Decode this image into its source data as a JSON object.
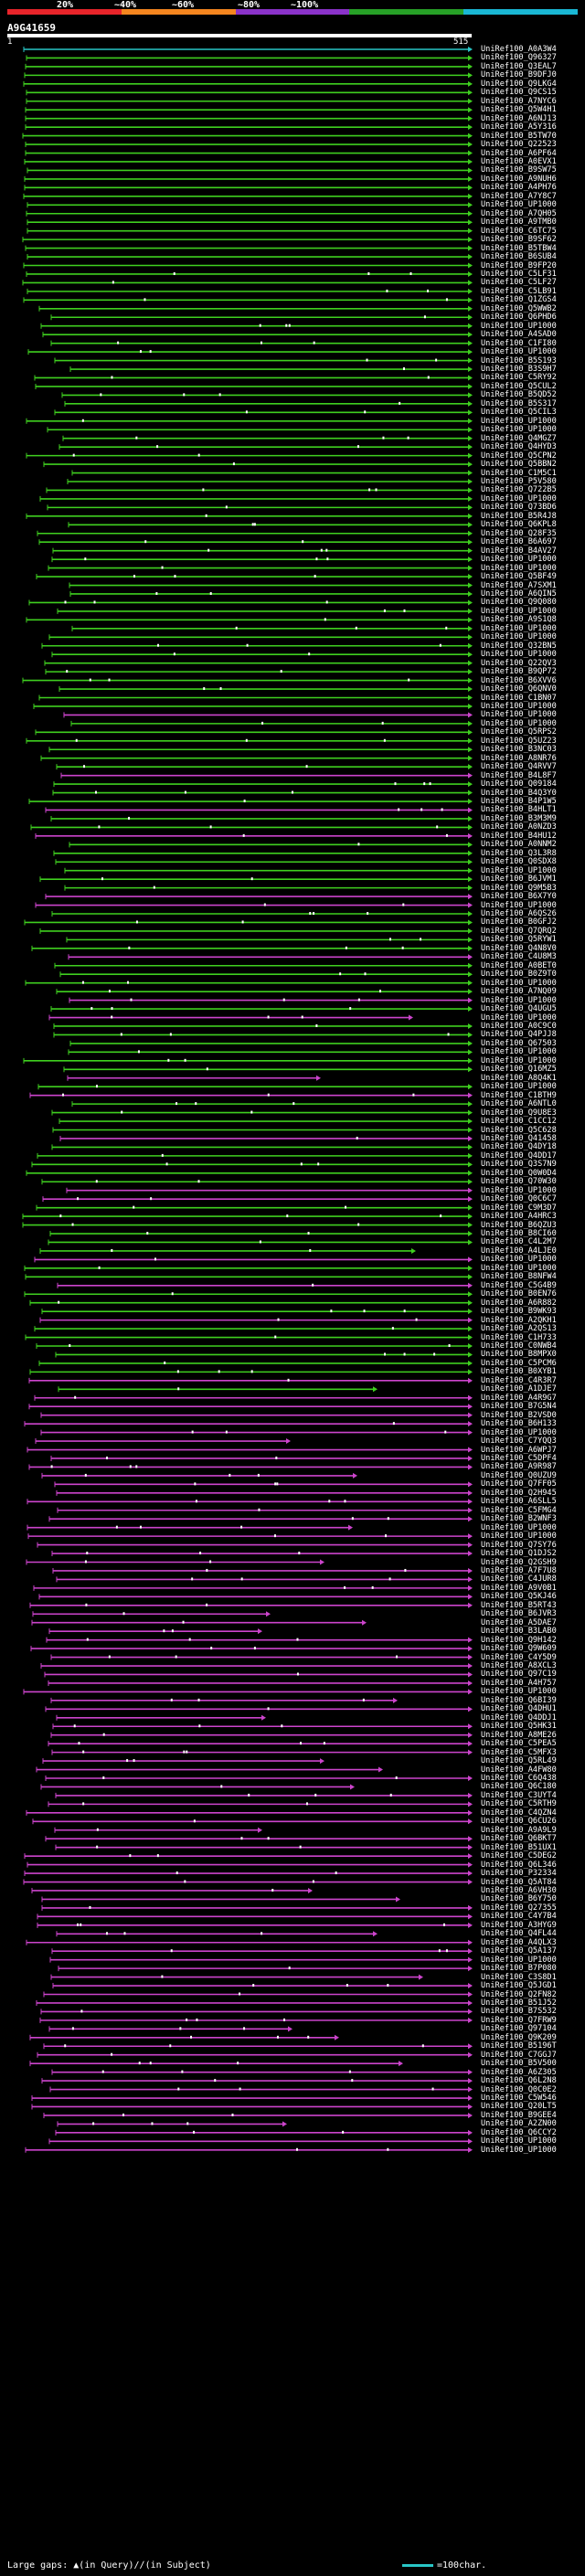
{
  "scale": {
    "colors": [
      "#e8242a",
      "#f5861f",
      "#8a32c9",
      "#27a127",
      "#1ab7d4"
    ],
    "ticks": [
      "20%",
      "~40%",
      "~60%",
      "~80%",
      "~100%"
    ]
  },
  "query": {
    "id": "A9G41659",
    "start": "1",
    "end": "515"
  },
  "track_colors": {
    "green": "#3fcf1f",
    "magenta": "#cc44cc",
    "cyan": "#29c6c6"
  },
  "hits": [
    "UniRef100_A0A3W4",
    "UniRef100_Q96327",
    "UniRef100_Q3EAL7",
    "UniRef100_B9DFJ0",
    "UniRef100_Q9LKG4",
    "UniRef100_Q9CS15",
    "UniRef100_A7NYC6",
    "UniRef100_Q5W4H1",
    "UniRef100_A6NJ13",
    "UniRef100_A5Y316",
    "UniRef100_B5TW70",
    "UniRef100_Q22523",
    "UniRef100_A6PF64",
    "UniRef100_A0EVX1",
    "UniRef100_B9SW75",
    "UniRef100_A9NUH6",
    "UniRef100_A4PH76",
    "UniRef100_A7Y8C7",
    "UniRef100_UP1000",
    "UniRef100_A7QH05",
    "UniRef100_A9TMB0",
    "UniRef100_C6TC75",
    "UniRef100_B9SF62",
    "UniRef100_B5TBW4",
    "UniRef100_B6SUB4",
    "UniRef100_B9FP20",
    "UniRef100_C5LF31",
    "UniRef100_C5LF27",
    "UniRef100_C5LB91",
    "UniRef100_Q1ZGS4",
    "UniRef100_Q5WWB2",
    "UniRef100_Q6PHD6",
    "UniRef100_UP1000",
    "UniRef100_A4SAD0",
    "UniRef100_C1FI80",
    "UniRef100_UP1000",
    "UniRef100_B5S193",
    "UniRef100_B3S9H7",
    "UniRef100_C5RY92",
    "UniRef100_Q5CUL2",
    "UniRef100_B5QD52",
    "UniRef100_B5S317",
    "UniRef100_Q5CIL3",
    "UniRef100_UP1000",
    "UniRef100_UP1000",
    "UniRef100_Q4MGZ7",
    "UniRef100_Q4HYD3",
    "UniRef100_Q5CPN2",
    "UniRef100_Q5BBN2",
    "UniRef100_C1M5C1",
    "UniRef100_P5V580",
    "UniRef100_Q722B5",
    "UniRef100_UP1000",
    "UniRef100_Q73BD6",
    "UniRef100_B5R4J8",
    "UniRef100_Q6KPL8",
    "UniRef100_Q28F35",
    "UniRef100_B6A697",
    "UniRef100_B4AV27",
    "UniRef100_UP1000",
    "UniRef100_UP1000",
    "UniRef100_Q5BF49",
    "UniRef100_A7SXM1",
    "UniRef100_A6QIN5",
    "UniRef100_Q9Q080",
    "UniRef100_UP1000",
    "UniRef100_A9S1Q8",
    "UniRef100_UP1000",
    "UniRef100_UP1000",
    "UniRef100_Q32BN5",
    "UniRef100_UP1000",
    "UniRef100_Q22QV3",
    "UniRef100_B9QP72",
    "UniRef100_B6XVV6",
    "UniRef100_Q6QNV0",
    "UniRef100_C1BN07",
    "UniRef100_UP1000",
    "UniRef100_UP1000",
    "UniRef100_UP1000",
    "UniRef100_Q5RPS2",
    "UniRef100_Q5UZ23",
    "UniRef100_B3NC03",
    "UniRef100_A8NR76",
    "UniRef100_Q4RVV7",
    "UniRef100_B4L8F7",
    "UniRef100_Q09184",
    "UniRef100_B4Q3Y0",
    "UniRef100_B4P1W5",
    "UniRef100_B4HLT1",
    "UniRef100_B3M3M9",
    "UniRef100_A0NZD3",
    "UniRef100_B4HU12",
    "UniRef100_A0NNM2",
    "UniRef100_Q3L3R8",
    "UniRef100_Q0SDX8",
    "UniRef100_UP1000",
    "UniRef100_B6JVM1",
    "UniRef100_Q9M5B3",
    "UniRef100_B6X7Y0",
    "UniRef100_UP1000",
    "UniRef100_A6QS26",
    "UniRef100_B0GFJ2",
    "UniRef100_Q7QRQ2",
    "UniRef100_Q5RYW1",
    "UniRef100_Q4N8V0",
    "UniRef100_C4U8M3",
    "UniRef100_A0BET0",
    "UniRef100_B0Z9T0",
    "UniRef100_UP1000",
    "UniRef100_A7NQ09",
    "UniRef100_UP1000",
    "UniRef100_Q4UGU5",
    "UniRef100_UP1000",
    "UniRef100_A0C9C0",
    "UniRef100_Q4PJJ8",
    "UniRef100_Q67503",
    "UniRef100_UP1000",
    "UniRef100_UP1000",
    "UniRef100_Q16MZ5",
    "UniRef100_A8Q4K1",
    "UniRef100_UP1000",
    "UniRef100_C1BTH9",
    "UniRef100_A6NTL0",
    "UniRef100_Q9U8E3",
    "UniRef100_C1CC12",
    "UniRef100_Q5C628",
    "UniRef100_Q41458",
    "UniRef100_Q4DY18",
    "UniRef100_Q4DD17",
    "UniRef100_Q3S7N9",
    "UniRef100_Q0W0D4",
    "UniRef100_Q70W30",
    "UniRef100_UP1000",
    "UniRef100_Q0C6C7",
    "UniRef100_C9M3D7",
    "UniRef100_A4HRC3",
    "UniRef100_B6QZU3",
    "UniRef100_B8CI60",
    "UniRef100_C4L2M7",
    "UniRef100_A4LJE0",
    "UniRef100_UP1000",
    "UniRef100_UP1000",
    "UniRef100_B8NFW4",
    "UniRef100_C5G4B9",
    "UniRef100_B0EN76",
    "UniRef100_A6R882",
    "UniRef100_B9WK93",
    "UniRef100_A2QKH1",
    "UniRef100_A2QS13",
    "UniRef100_C1H733",
    "UniRef100_C0NWB4",
    "UniRef100_B8MPX0",
    "UniRef100_C5PCM6",
    "UniRef100_B0XYB1",
    "UniRef100_C4R3R7",
    "UniRef100_A1DJE7",
    "UniRef100_A4R9G7",
    "UniRef100_B7G5N4",
    "UniRef100_B2VSD0",
    "UniRef100_B6H133",
    "UniRef100_UP1000",
    "UniRef100_C7YQQ3",
    "UniRef100_A6WPJ7",
    "UniRef100_C5DPF4",
    "UniRef100_A9R987",
    "UniRef100_Q0UZU9",
    "UniRef100_Q7FF05",
    "UniRef100_Q2H945",
    "UniRef100_A6SLL5",
    "UniRef100_C5FMG4",
    "UniRef100_B2WNF3",
    "UniRef100_UP1000",
    "UniRef100_UP1000",
    "UniRef100_Q7SY76",
    "UniRef100_Q1DJS2",
    "UniRef100_Q2GSH9",
    "UniRef100_A7F7U8",
    "UniRef100_C4JUR8",
    "UniRef100_A9V0B1",
    "UniRef100_Q5KJ46",
    "UniRef100_B5RT43",
    "UniRef100_B6JVR3",
    "UniRef100_A5DAE7",
    "UniRef100_B3LAB0",
    "UniRef100_Q9H142",
    "UniRef100_Q9W609",
    "UniRef100_C4Y5D9",
    "UniRef100_A8XCL3",
    "UniRef100_Q97C19",
    "UniRef100_A4H757",
    "UniRef100_UP1000",
    "UniRef100_Q6BI39",
    "UniRef100_Q4DHU1",
    "UniRef100_Q4DDJ1",
    "UniRef100_Q5HK31",
    "UniRef100_A8ME26",
    "UniRef100_C5PEA5",
    "UniRef100_C5MFX3",
    "UniRef100_Q5RL49",
    "UniRef100_A4FW80",
    "UniRef100_C6Q438",
    "UniRef100_Q6C180",
    "UniRef100_C3UYT4",
    "UniRef100_C5RTH9",
    "UniRef100_C4QZN4",
    "UniRef100_Q6CU26",
    "UniRef100_A9A9L9",
    "UniRef100_Q6BKT7",
    "UniRef100_B51UX1",
    "UniRef100_C5DEG2",
    "UniRef100_Q6L346",
    "UniRef100_P32334",
    "UniRef100_Q5AT84",
    "UniRef100_A6VH30",
    "UniRef100_B6Y750",
    "UniRef100_Q27355",
    "UniRef100_C4Y7B4",
    "UniRef100_A3HYG9",
    "UniRef100_Q4FL44",
    "UniRef100_A4QLX3",
    "UniRef100_Q5A137",
    "UniRef100_UP1000",
    "UniRef100_B7P080",
    "UniRef100_C3S8D1",
    "UniRef100_Q5JGD1",
    "UniRef100_Q2FN82",
    "UniRef100_B51J52",
    "UniRef100_B7S532",
    "UniRef100_Q7FRW9",
    "UniRef100_Q97104",
    "UniRef100_Q9K209",
    "UniRef100_B5196T",
    "UniRef100_C7GGJ7",
    "UniRef100_B5V500",
    "UniRef100_A6Z305",
    "UniRef100_Q6L2N8",
    "UniRef100_Q0C0E2",
    "UniRef100_C5W546",
    "UniRef100_Q20LT5",
    "UniRef100_B9GEE4",
    "UniRef100_A2ZN00",
    "UniRef100_Q6CCY2",
    "UniRef100_UP1000",
    "UniRef100_UP1000"
  ],
  "legend": {
    "large_gaps": "Large gaps:",
    "in_query": "(in Query)/",
    "in_subject": "(in Subject)",
    "scale_label": "=100char."
  }
}
